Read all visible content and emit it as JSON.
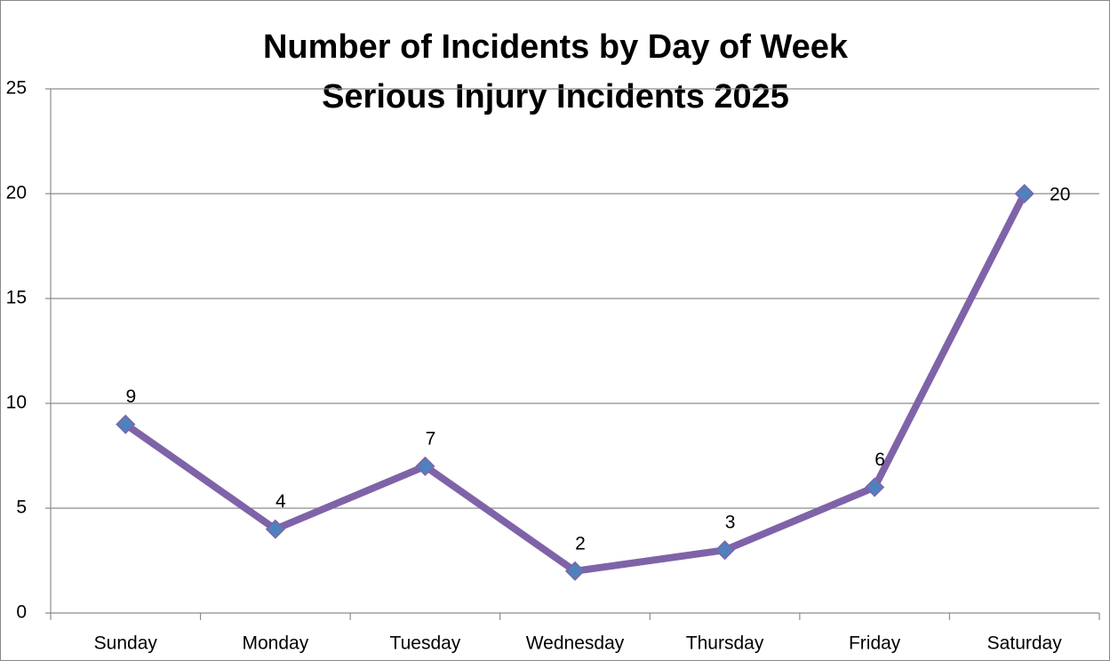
{
  "chart_data": {
    "type": "line",
    "title": "Number of Incidents by Day of Week",
    "subtitle": "Serious Injury Incidents 2025",
    "categories": [
      "Sunday",
      "Monday",
      "Tuesday",
      "Wednesday",
      "Thursday",
      "Friday",
      "Saturday"
    ],
    "series": [
      {
        "name": "Incidents",
        "color": "#7f63a8",
        "marker_color": "#4f81bd",
        "values": [
          9,
          4,
          7,
          2,
          3,
          6,
          20
        ]
      }
    ],
    "ylim": [
      0,
      25
    ],
    "yticks": [
      0,
      5,
      10,
      15,
      20,
      25
    ],
    "grid": true,
    "data_labels": true
  }
}
